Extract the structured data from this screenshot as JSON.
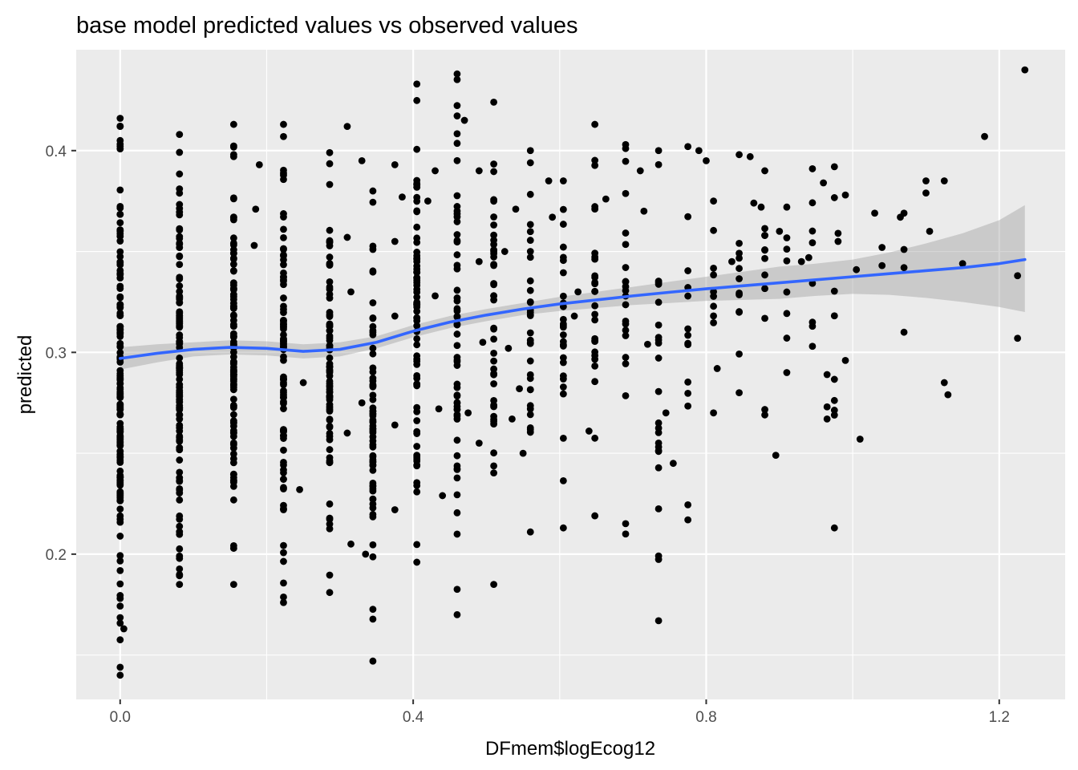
{
  "chart_data": {
    "type": "scatter",
    "title": "base model predicted values vs observed values",
    "xlabel": "DFmem$logEcog12",
    "ylabel": "predicted",
    "xlim": [
      -0.06,
      1.29
    ],
    "ylim": [
      0.128,
      0.45
    ],
    "x_ticks": [
      0.0,
      0.4,
      0.8,
      1.2
    ],
    "x_tick_labels": [
      "0.0",
      "0.4",
      "0.8",
      "1.2"
    ],
    "x_minor_ticks": [
      0.2,
      0.6,
      1.0
    ],
    "y_ticks": [
      0.2,
      0.3,
      0.4
    ],
    "y_tick_labels": [
      "0.2",
      "0.3",
      "0.4"
    ],
    "y_minor_ticks": [
      0.15,
      0.25,
      0.35
    ],
    "grid": true,
    "colors": {
      "panel": "#ebebeb",
      "grid": "#ffffff",
      "points": "#000000",
      "smooth_line": "#3366ff",
      "confidence_band": "#999999"
    },
    "columns": [
      {
        "x": 0.0,
        "ymin": 0.14,
        "ymax": 0.416,
        "n": 150
      },
      {
        "x": 0.081,
        "ymin": 0.185,
        "ymax": 0.408,
        "n": 110
      },
      {
        "x": 0.155,
        "ymin": 0.185,
        "ymax": 0.413,
        "n": 100
      },
      {
        "x": 0.223,
        "ymin": 0.176,
        "ymax": 0.413,
        "n": 85
      },
      {
        "x": 0.286,
        "ymin": 0.181,
        "ymax": 0.399,
        "n": 75
      },
      {
        "x": 0.345,
        "ymin": 0.147,
        "ymax": 0.38,
        "n": 65
      },
      {
        "x": 0.405,
        "ymin": 0.196,
        "ymax": 0.433,
        "n": 75
      },
      {
        "x": 0.46,
        "ymin": 0.17,
        "ymax": 0.438,
        "n": 55
      },
      {
        "x": 0.51,
        "ymin": 0.185,
        "ymax": 0.424,
        "n": 40
      },
      {
        "x": 0.56,
        "ymin": 0.211,
        "ymax": 0.4,
        "n": 30
      },
      {
        "x": 0.605,
        "ymin": 0.213,
        "ymax": 0.385,
        "n": 25
      },
      {
        "x": 0.648,
        "ymin": 0.219,
        "ymax": 0.413,
        "n": 25
      },
      {
        "x": 0.69,
        "ymin": 0.21,
        "ymax": 0.403,
        "n": 20
      },
      {
        "x": 0.735,
        "ymin": 0.167,
        "ymax": 0.4,
        "n": 22
      },
      {
        "x": 0.775,
        "ymin": 0.217,
        "ymax": 0.402,
        "n": 12
      },
      {
        "x": 0.81,
        "ymin": 0.27,
        "ymax": 0.375,
        "n": 8
      },
      {
        "x": 0.845,
        "ymin": 0.28,
        "ymax": 0.398,
        "n": 10
      },
      {
        "x": 0.88,
        "ymin": 0.269,
        "ymax": 0.39,
        "n": 10
      },
      {
        "x": 0.91,
        "ymin": 0.29,
        "ymax": 0.372,
        "n": 6
      },
      {
        "x": 0.945,
        "ymin": 0.303,
        "ymax": 0.391,
        "n": 6
      },
      {
        "x": 0.975,
        "ymin": 0.213,
        "ymax": 0.392,
        "n": 7
      }
    ],
    "points": [
      {
        "x": 0.005,
        "y": 0.163
      },
      {
        "x": 0.19,
        "y": 0.393
      },
      {
        "x": 0.185,
        "y": 0.371
      },
      {
        "x": 0.183,
        "y": 0.353
      },
      {
        "x": 0.245,
        "y": 0.232
      },
      {
        "x": 0.25,
        "y": 0.285
      },
      {
        "x": 0.31,
        "y": 0.412
      },
      {
        "x": 0.31,
        "y": 0.357
      },
      {
        "x": 0.315,
        "y": 0.33
      },
      {
        "x": 0.31,
        "y": 0.26
      },
      {
        "x": 0.315,
        "y": 0.205
      },
      {
        "x": 0.33,
        "y": 0.395
      },
      {
        "x": 0.33,
        "y": 0.275
      },
      {
        "x": 0.335,
        "y": 0.2
      },
      {
        "x": 0.375,
        "y": 0.393
      },
      {
        "x": 0.375,
        "y": 0.355
      },
      {
        "x": 0.375,
        "y": 0.318
      },
      {
        "x": 0.375,
        "y": 0.264
      },
      {
        "x": 0.375,
        "y": 0.222
      },
      {
        "x": 0.385,
        "y": 0.377
      },
      {
        "x": 0.43,
        "y": 0.39
      },
      {
        "x": 0.43,
        "y": 0.328
      },
      {
        "x": 0.435,
        "y": 0.272
      },
      {
        "x": 0.44,
        "y": 0.229
      },
      {
        "x": 0.42,
        "y": 0.375
      },
      {
        "x": 0.47,
        "y": 0.415
      },
      {
        "x": 0.475,
        "y": 0.27
      },
      {
        "x": 0.49,
        "y": 0.39
      },
      {
        "x": 0.49,
        "y": 0.345
      },
      {
        "x": 0.495,
        "y": 0.305
      },
      {
        "x": 0.49,
        "y": 0.255
      },
      {
        "x": 0.525,
        "y": 0.35
      },
      {
        "x": 0.53,
        "y": 0.302
      },
      {
        "x": 0.535,
        "y": 0.267
      },
      {
        "x": 0.54,
        "y": 0.371
      },
      {
        "x": 0.545,
        "y": 0.282
      },
      {
        "x": 0.55,
        "y": 0.25
      },
      {
        "x": 0.585,
        "y": 0.385
      },
      {
        "x": 0.59,
        "y": 0.367
      },
      {
        "x": 0.62,
        "y": 0.318
      },
      {
        "x": 0.625,
        "y": 0.33
      },
      {
        "x": 0.64,
        "y": 0.261
      },
      {
        "x": 0.663,
        "y": 0.376
      },
      {
        "x": 0.71,
        "y": 0.39
      },
      {
        "x": 0.715,
        "y": 0.37
      },
      {
        "x": 0.72,
        "y": 0.304
      },
      {
        "x": 0.745,
        "y": 0.27
      },
      {
        "x": 0.755,
        "y": 0.245
      },
      {
        "x": 0.79,
        "y": 0.4
      },
      {
        "x": 0.8,
        "y": 0.395
      },
      {
        "x": 0.815,
        "y": 0.292
      },
      {
        "x": 0.835,
        "y": 0.345
      },
      {
        "x": 0.86,
        "y": 0.397
      },
      {
        "x": 0.865,
        "y": 0.374
      },
      {
        "x": 0.875,
        "y": 0.372
      },
      {
        "x": 0.895,
        "y": 0.249
      },
      {
        "x": 0.9,
        "y": 0.36
      },
      {
        "x": 0.93,
        "y": 0.345
      },
      {
        "x": 0.94,
        "y": 0.347
      },
      {
        "x": 0.96,
        "y": 0.384
      },
      {
        "x": 0.965,
        "y": 0.289
      },
      {
        "x": 0.965,
        "y": 0.273
      },
      {
        "x": 0.965,
        "y": 0.267
      },
      {
        "x": 0.98,
        "y": 0.359
      },
      {
        "x": 0.98,
        "y": 0.355
      },
      {
        "x": 0.99,
        "y": 0.378
      },
      {
        "x": 0.99,
        "y": 0.296
      },
      {
        "x": 1.005,
        "y": 0.341
      },
      {
        "x": 1.01,
        "y": 0.257
      },
      {
        "x": 1.03,
        "y": 0.369
      },
      {
        "x": 1.04,
        "y": 0.352
      },
      {
        "x": 1.04,
        "y": 0.343
      },
      {
        "x": 1.065,
        "y": 0.367
      },
      {
        "x": 1.07,
        "y": 0.369
      },
      {
        "x": 1.07,
        "y": 0.351
      },
      {
        "x": 1.07,
        "y": 0.342
      },
      {
        "x": 1.07,
        "y": 0.31
      },
      {
        "x": 1.1,
        "y": 0.385
      },
      {
        "x": 1.1,
        "y": 0.379
      },
      {
        "x": 1.105,
        "y": 0.36
      },
      {
        "x": 1.125,
        "y": 0.385
      },
      {
        "x": 1.125,
        "y": 0.285
      },
      {
        "x": 1.13,
        "y": 0.279
      },
      {
        "x": 1.15,
        "y": 0.344
      },
      {
        "x": 1.18,
        "y": 0.407
      },
      {
        "x": 1.225,
        "y": 0.338
      },
      {
        "x": 1.225,
        "y": 0.307
      },
      {
        "x": 1.235,
        "y": 0.44
      }
    ],
    "smooth": {
      "method": "loess",
      "x": [
        0.0,
        0.05,
        0.1,
        0.15,
        0.2,
        0.25,
        0.3,
        0.35,
        0.4,
        0.45,
        0.5,
        0.55,
        0.6,
        0.65,
        0.7,
        0.75,
        0.8,
        0.85,
        0.9,
        0.95,
        1.0,
        1.05,
        1.1,
        1.15,
        1.2,
        1.235
      ],
      "y": [
        0.297,
        0.2995,
        0.3015,
        0.3025,
        0.302,
        0.3005,
        0.3015,
        0.305,
        0.3105,
        0.315,
        0.3185,
        0.3215,
        0.324,
        0.326,
        0.328,
        0.3298,
        0.3315,
        0.333,
        0.3345,
        0.336,
        0.3375,
        0.339,
        0.3405,
        0.342,
        0.344,
        0.346
      ],
      "ymin": [
        0.2915,
        0.295,
        0.298,
        0.299,
        0.2985,
        0.297,
        0.298,
        0.302,
        0.3075,
        0.312,
        0.3155,
        0.3185,
        0.3205,
        0.322,
        0.3235,
        0.3245,
        0.3255,
        0.326,
        0.3265,
        0.328,
        0.329,
        0.3285,
        0.327,
        0.325,
        0.3225,
        0.32
      ],
      "ymax": [
        0.3025,
        0.304,
        0.305,
        0.306,
        0.3055,
        0.304,
        0.305,
        0.308,
        0.3135,
        0.318,
        0.3215,
        0.3245,
        0.3275,
        0.33,
        0.3325,
        0.335,
        0.3375,
        0.34,
        0.3425,
        0.344,
        0.346,
        0.3495,
        0.354,
        0.359,
        0.3655,
        0.373
      ]
    }
  }
}
